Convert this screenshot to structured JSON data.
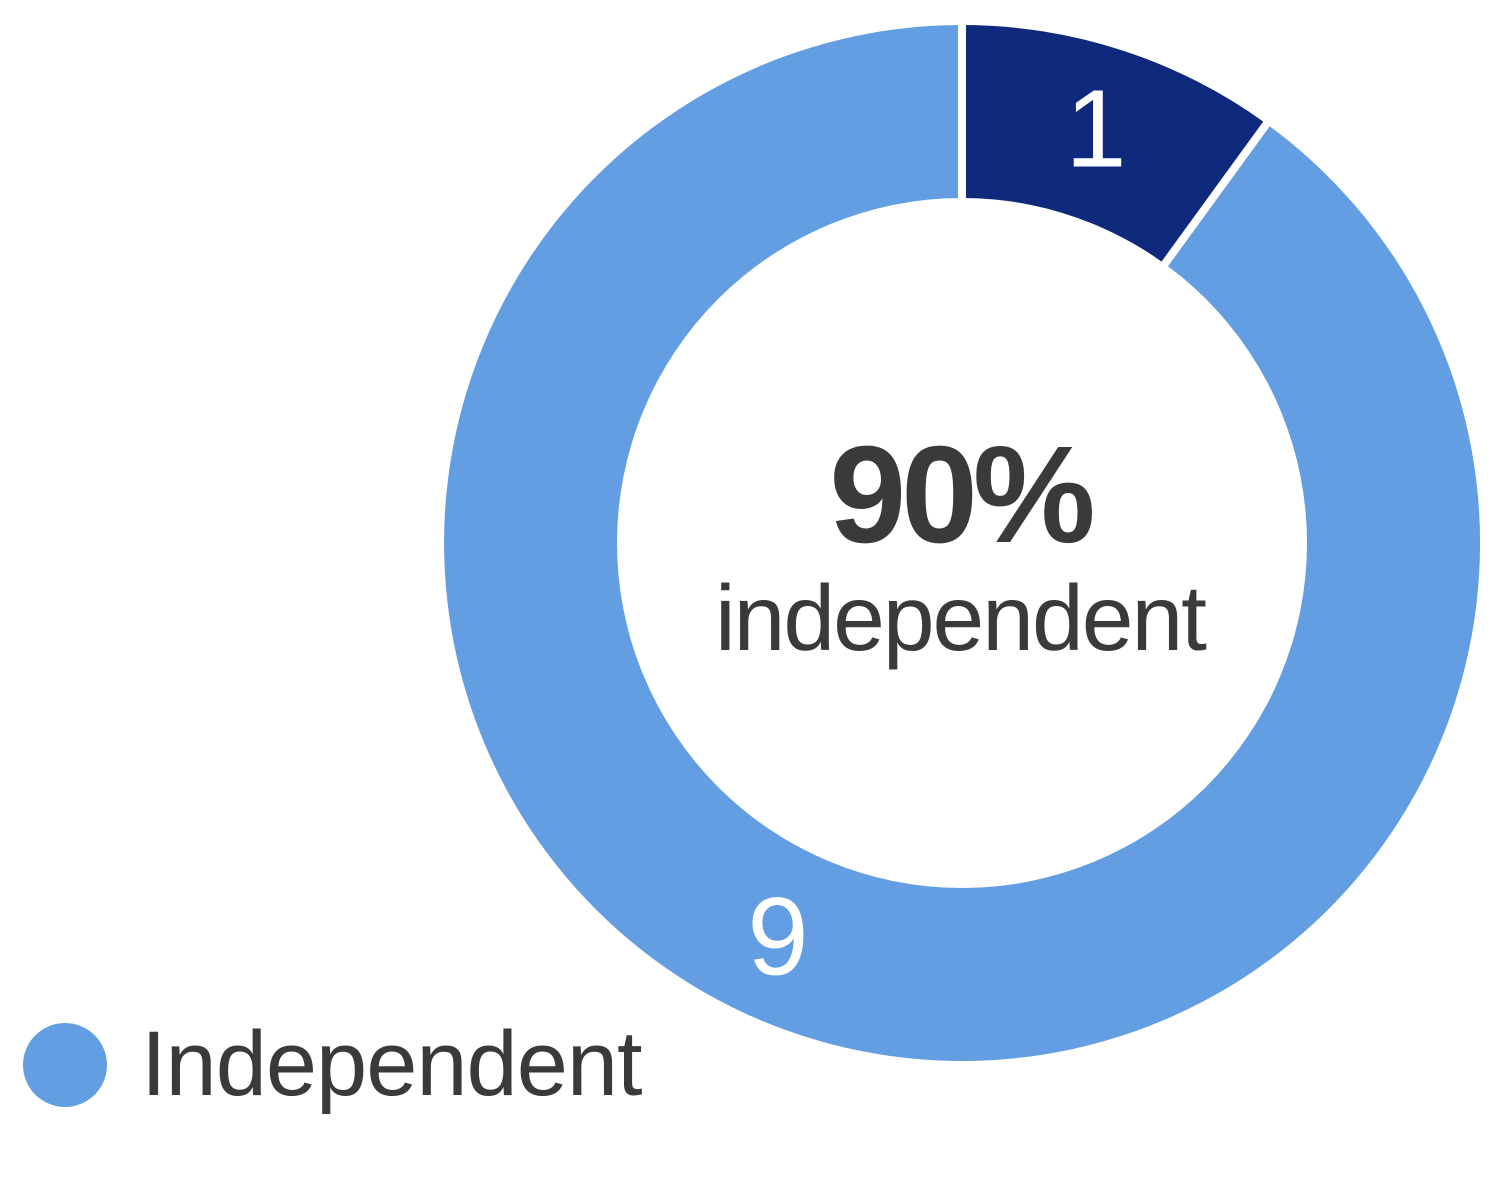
{
  "chart_data": {
    "type": "donut",
    "title": "",
    "start_angle_deg": 0,
    "direction": "clockwise",
    "series": [
      {
        "value": 1,
        "data_label": "1",
        "color": "#0f2a7c",
        "label_angle_deg": 18
      },
      {
        "value": 9,
        "data_label": "9",
        "color": "#649ee2",
        "label_angle_deg": 205,
        "legend_label": "Independent"
      }
    ],
    "total": 10,
    "center_label": {
      "value": "90%",
      "caption": "independent"
    },
    "legend_position": "bottom-left",
    "slice_gap_color": "#ffffff"
  },
  "legend": [
    {
      "label": "Independent",
      "color": "#649ee2"
    }
  ],
  "colors": {
    "background": "#ffffff",
    "center_text": "#3a3a3a",
    "data_label_text": "#ffffff"
  }
}
